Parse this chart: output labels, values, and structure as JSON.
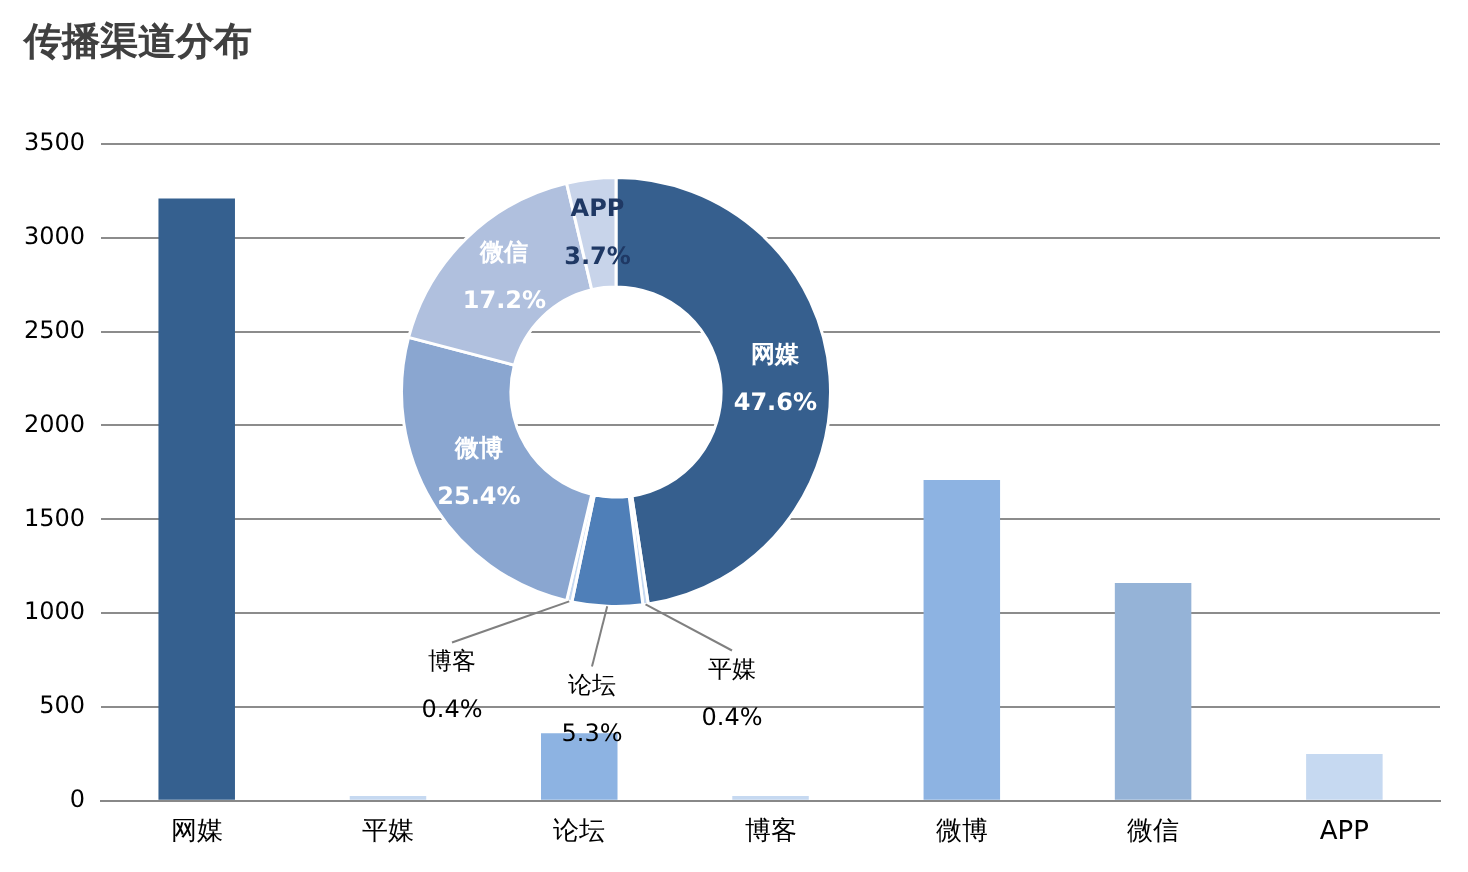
{
  "chart_data": [
    {
      "type": "bar",
      "title": "传播渠道分布",
      "categories": [
        "网媒",
        "平媒",
        "论坛",
        "博客",
        "微博",
        "微信",
        "APP"
      ],
      "values": [
        3210,
        25,
        360,
        25,
        1710,
        1160,
        250
      ],
      "colors": [
        "#35608f",
        "#c6d9f1",
        "#8db3e2",
        "#c6d9f1",
        "#8db3e2",
        "#95b3d7",
        "#c6d9f1"
      ],
      "ylim": [
        0,
        3500
      ],
      "yticks": [
        0,
        500,
        1000,
        1500,
        2000,
        2500,
        3000,
        3500
      ],
      "grid": "y",
      "legend": false
    },
    {
      "type": "donut",
      "categories": [
        "网媒",
        "平媒",
        "论坛",
        "博客",
        "微博",
        "微信",
        "APP"
      ],
      "values": [
        47.6,
        0.4,
        5.3,
        0.4,
        25.4,
        17.2,
        3.7
      ],
      "value_labels": [
        "47.6%",
        "0.4%",
        "5.3%",
        "0.4%",
        "25.4%",
        "17.2%",
        "3.7%"
      ],
      "colors": [
        "#365f8e",
        "#c6d9f1",
        "#4f7fb8",
        "#c6d9f1",
        "#8aa6d0",
        "#b0c0de",
        "#c8d4ea"
      ],
      "legend": false
    }
  ]
}
